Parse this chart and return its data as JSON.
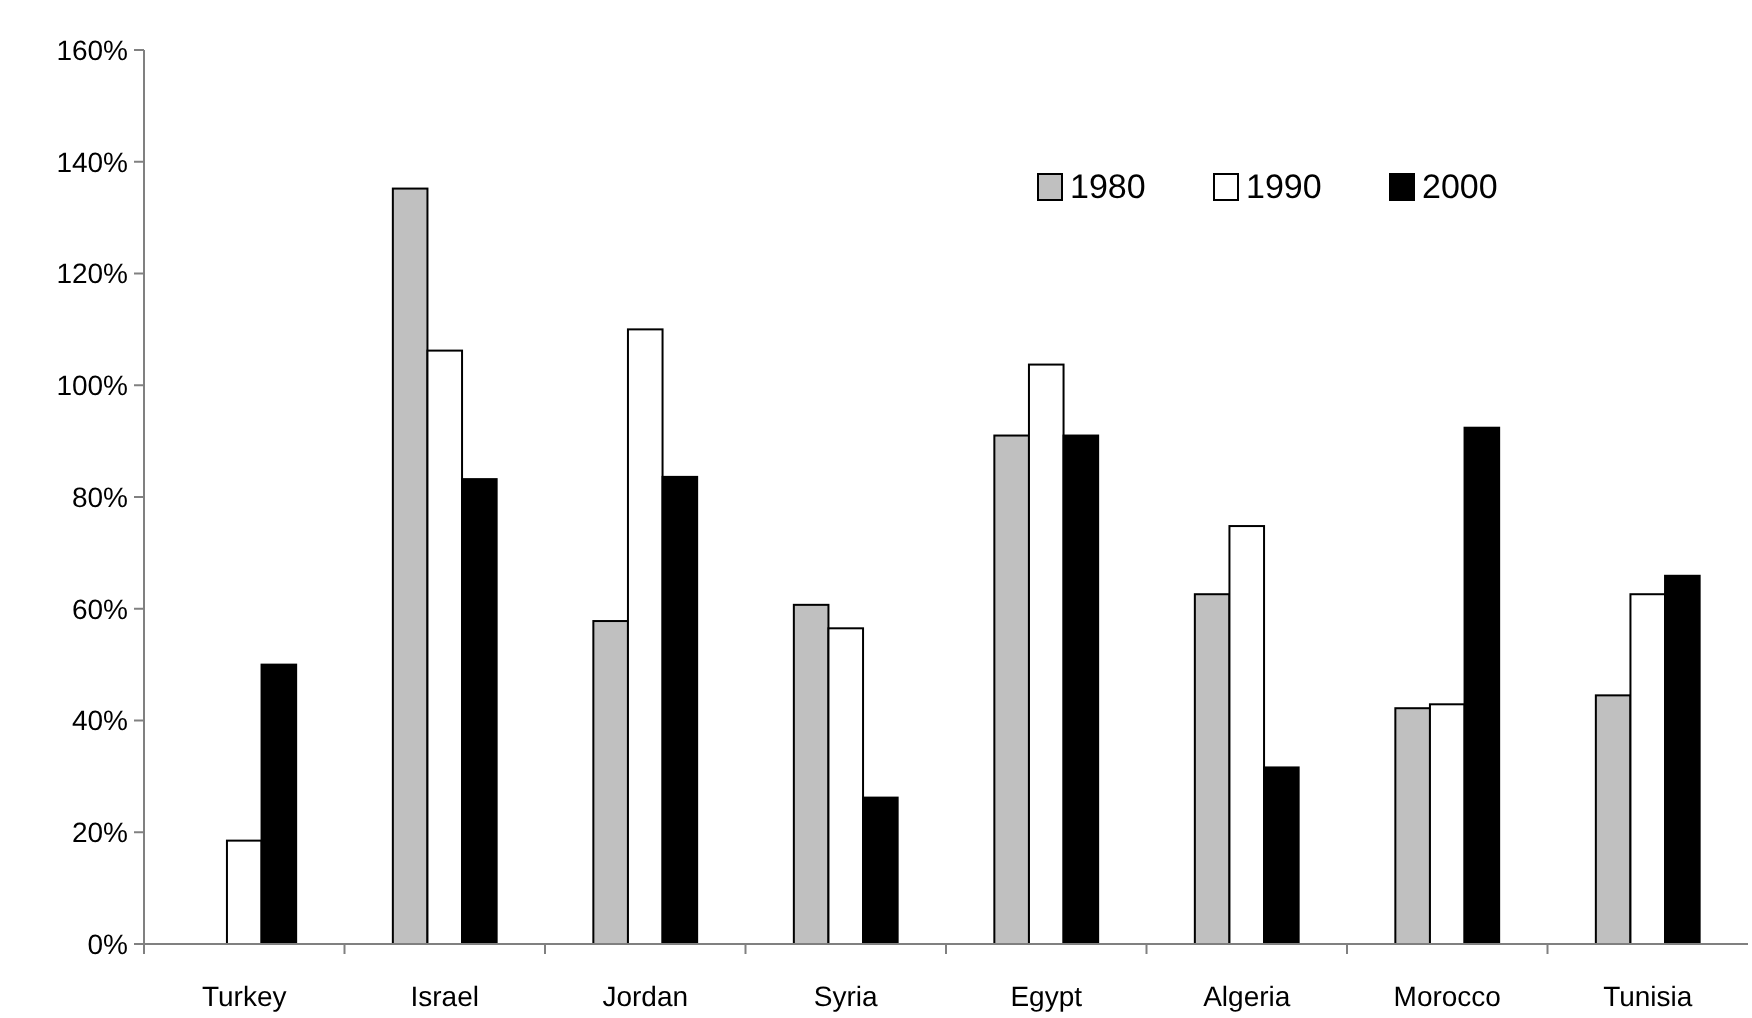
{
  "chart_data": {
    "type": "bar",
    "categories": [
      "Turkey",
      "Israel",
      "Jordan",
      "Syria",
      "Egypt",
      "Algeria",
      "Morocco",
      "Tunisia"
    ],
    "series": [
      {
        "name": "1980",
        "color": "#c0c0c0",
        "values": [
          null,
          135.2,
          57.8,
          60.7,
          91.0,
          62.6,
          42.2,
          44.5
        ]
      },
      {
        "name": "1990",
        "color": "#ffffff",
        "values": [
          18.5,
          106.2,
          110,
          56.5,
          103.7,
          74.8,
          42.9,
          62.6
        ]
      },
      {
        "name": "2000",
        "color": "#000000",
        "values": [
          50.0,
          83.2,
          83.6,
          26.2,
          91.0,
          31.6,
          92.4,
          65.9
        ]
      }
    ],
    "ylim": [
      0,
      160
    ],
    "yticks": [
      {
        "value": 0,
        "label": "0%"
      },
      {
        "value": 20,
        "label": "20%"
      },
      {
        "value": 40,
        "label": "40%"
      },
      {
        "value": 60,
        "label": "60%"
      },
      {
        "value": 80,
        "label": "80%"
      },
      {
        "value": 100,
        "label": "100%"
      },
      {
        "value": 120,
        "label": "120%"
      },
      {
        "value": 140,
        "label": "140%"
      },
      {
        "value": 160,
        "label": "160%"
      }
    ],
    "grid": false,
    "legend": "top right"
  }
}
